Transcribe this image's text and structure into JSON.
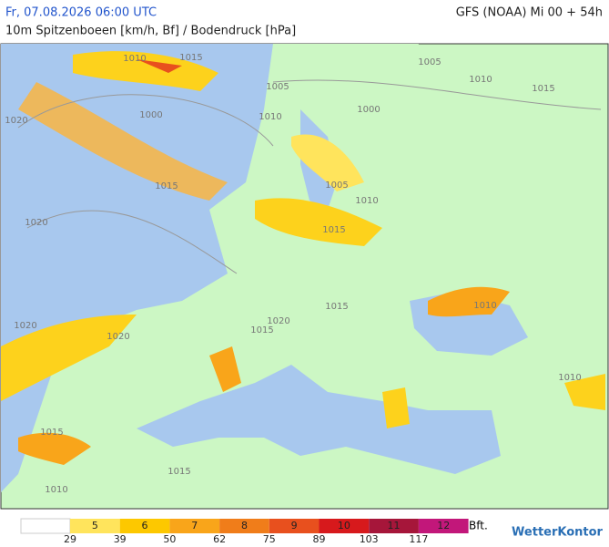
{
  "header": {
    "date": "Fr, 07.08.2026 06:00 UTC",
    "subtitle": "10m Spitzenboeen [km/h, Bf] / Bodendruck [hPa]",
    "model": "GFS (NOAA) Mi 00 + 54h"
  },
  "isobars": [
    "1010",
    "1015",
    "1005",
    "1005",
    "1010",
    "1015",
    "1020",
    "1000",
    "1010",
    "1000",
    "1005",
    "1015",
    "1010",
    "1020",
    "1015",
    "1010",
    "1015",
    "1020",
    "1015",
    "1020",
    "1010",
    "1015",
    "1015",
    "1010",
    "1020"
  ],
  "legend": {
    "bft": [
      "5",
      "6",
      "7",
      "8",
      "9",
      "10",
      "11",
      "12"
    ],
    "kmh": [
      "29",
      "39",
      "50",
      "62",
      "75",
      "89",
      "103",
      "117"
    ],
    "unit": "Bft."
  },
  "brand": "WetterKontor"
}
